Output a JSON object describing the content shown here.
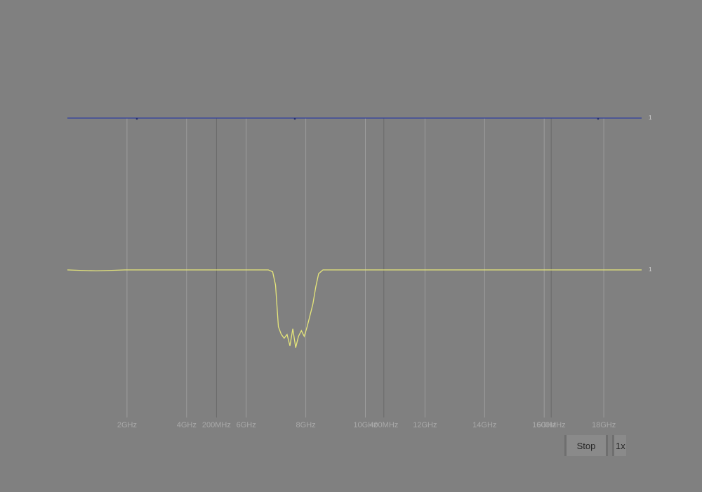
{
  "chart_data": {
    "type": "line",
    "title": "",
    "grid": true,
    "x_axis_a": {
      "unit": "GHz",
      "range": [
        0,
        20
      ],
      "ticks": [
        {
          "value": 2,
          "label": "2GHz"
        },
        {
          "value": 4,
          "label": "4GHz"
        },
        {
          "value": 6,
          "label": "6GHz"
        },
        {
          "value": 8,
          "label": "8GHz"
        },
        {
          "value": 10,
          "label": "10GHz"
        },
        {
          "value": 12,
          "label": "12GHz"
        },
        {
          "value": 14,
          "label": "14GHz"
        },
        {
          "value": 16,
          "label": "16GHz"
        },
        {
          "value": 18,
          "label": "18GHz"
        }
      ]
    },
    "x_axis_b": {
      "unit": "MHz",
      "range": [
        0,
        1000
      ],
      "ticks": [
        {
          "value": 200,
          "label": "200MHz"
        },
        {
          "value": 400,
          "label": "400MHz"
        },
        {
          "value": 600,
          "label": "600MHz"
        },
        {
          "value": 800,
          "label": "800MHz"
        },
        {
          "value": 1000,
          "label": "1GHz"
        }
      ]
    },
    "series": [
      {
        "color": "#2f3fa0",
        "marker_label": "1",
        "x": [
          0,
          20
        ],
        "y": [
          1,
          1
        ]
      },
      {
        "color": "#e6e67a",
        "marker_label": "1",
        "x": [
          0,
          1,
          2,
          3,
          4,
          5,
          6,
          7.0,
          7.15,
          7.25,
          7.35,
          7.45,
          7.55,
          7.65,
          7.75,
          7.85,
          7.95,
          8.05,
          8.15,
          8.25,
          8.35,
          8.45,
          8.55,
          8.65,
          8.75,
          8.9,
          9.2,
          10,
          12,
          14,
          16,
          18,
          20
        ],
        "y": [
          1.0,
          0.995,
          1.0,
          1.0,
          1.0,
          1.0,
          1.0,
          1.0,
          0.99,
          0.92,
          0.7,
          0.66,
          0.64,
          0.66,
          0.6,
          0.69,
          0.59,
          0.65,
          0.68,
          0.65,
          0.7,
          0.76,
          0.82,
          0.91,
          0.98,
          1.0,
          1.0,
          1.0,
          1.0,
          1.0,
          1.0,
          1.0,
          1.0
        ]
      }
    ]
  },
  "controls": {
    "stop_label": "Stop",
    "speed_label": "1x"
  }
}
